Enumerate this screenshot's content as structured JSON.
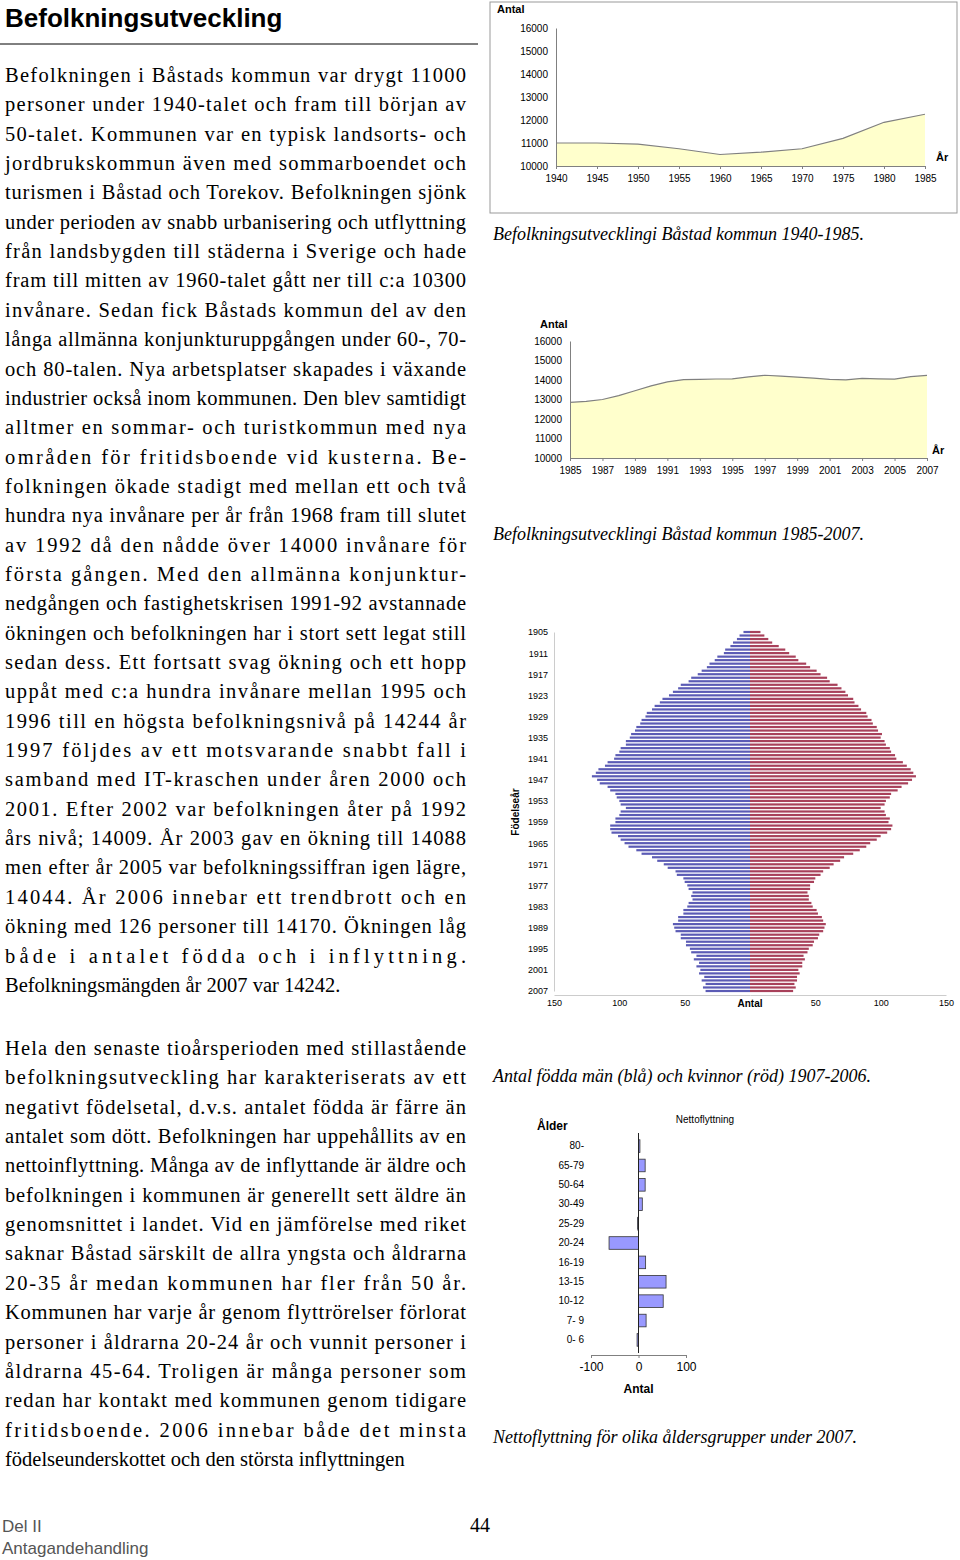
{
  "document": {
    "heading": "Befolkningsutveckling",
    "paragraphs": [
      [
        "Befolkningen i Båstads kommun var drygt 11000",
        "personer under 1940-talet och fram till början av",
        "50-talet. Kommunen var en typisk landsorts- och",
        "jordbrukskommun även med sommarboendet och",
        "turismen i Båstad och Torekov. Befolkningen sjönk",
        "under perioden av snabb urbanisering och utflyttning",
        "från landsbygden till städerna i Sverige och hade",
        "fram till mitten av 1960-talet gått ner till c:a 10300",
        "invånare. Sedan fick Båstads kommun del av den",
        "långa allmänna konjunkturuppgången under 60-, 70-",
        "och 80-talen. Nya arbetsplatser skapades i växande",
        "industrier också inom kommunen. Den blev samtidigt",
        "alltmer en sommar- och turistkommun med nya",
        "områden för fritidsboende vid kusterna. Be-",
        "folkningen ökade stadigt med mellan ett och två",
        "hundra nya invånare per år från 1968 fram till slutet",
        "av 1992 då den nådde över 14000 invånare för",
        "första gången. Med den allmänna konjunktur-",
        "nedgången och fastighetskrisen 1991-92 avstannade",
        "ökningen och befolkningen har i stort sett legat still",
        "sedan dess. Ett fortsatt svag ökning och ett hopp",
        "uppåt med c:a hundra invånare mellan 1995 och",
        "1996 till en högsta befolkningsnivå på 14244 år",
        "1997 följdes av ett motsvarande snabbt fall i",
        "samband med IT-kraschen under åren 2000 och",
        "2001. Efter 2002 var befolkningen åter på 1992",
        "års nivå; 14009. År 2003 gav en ökning till 14088",
        "men efter år 2005 var befolkningssiffran igen lägre,",
        "14044. År 2006 innebar ett trendbrott och en",
        "ökning med 126 personer till 14170. Ökningen låg",
        "både i antalet födda och i inflyttning.",
        "Befolkningsmängden år 2007 var 14242."
      ],
      [
        "Hela den senaste tioårsperioden med stillastående",
        "befolkningsutveckling har karakteriserats av ett",
        "negativt födelsetal, d.v.s. antalet födda är färre än",
        "antalet som dött. Befolkningen har uppehållits av en",
        "nettoinflyttning. Många av de inflyttande är äldre och",
        "befolkningen i kommunen är generellt sett äldre än",
        "genomsnittet i landet. Vid en jämförelse med riket",
        "saknar Båstad särskilt de allra yngsta och åldrarna",
        "20-35 år medan kommunen har fler från 50 år.",
        "Kommunen har varje år genom flyttrörelser förlorat",
        "personer i åldrarna 20-24 år och vunnit personer i",
        "åldrarna 45-64. Troligen är många personer som",
        "redan har kontakt med kommunen genom tidigare",
        "fritidsboende. 2006 innebar både det minsta",
        "födelseunderskottet och den största inflyttningen"
      ]
    ],
    "captions": [
      "Befolkningsutvecklingi Båstad kommun 1940-1985.",
      "Befolkningsutvecklingi Båstad kommun 1985-2007.",
      "Antal födda män (blå) och kvinnor (röd) 1907-2006.",
      "Nettoflyttning för olika åldersgrupper under 2007."
    ],
    "footer": {
      "lines": [
        "Del II",
        "Antagandehandling"
      ],
      "page": "44"
    }
  },
  "chart_data": [
    {
      "type": "area",
      "y_label": "Antal",
      "x_label": "År",
      "x": [
        1940,
        1945,
        1950,
        1955,
        1960,
        1965,
        1970,
        1975,
        1980,
        1985
      ],
      "values": [
        11000,
        11000,
        10950,
        10750,
        10500,
        10600,
        10750,
        11200,
        11900,
        12250
      ],
      "xlim": [
        1940,
        1985
      ],
      "xticks": [
        1940,
        1945,
        1950,
        1955,
        1960,
        1965,
        1970,
        1975,
        1980,
        1985
      ],
      "ylim": [
        10000,
        16000
      ],
      "yticks": [
        10000,
        11000,
        12000,
        13000,
        14000,
        15000,
        16000
      ],
      "color": "#ffffcc"
    },
    {
      "type": "area",
      "y_label": "Antal",
      "x_label": "År",
      "x": [
        1985,
        1986,
        1987,
        1988,
        1989,
        1990,
        1991,
        1992,
        1993,
        1994,
        1995,
        1996,
        1997,
        1998,
        1999,
        2000,
        2001,
        2002,
        2003,
        2004,
        2005,
        2006,
        2007
      ],
      "values": [
        12850,
        12900,
        13000,
        13200,
        13450,
        13700,
        13900,
        14020,
        14030,
        14050,
        14060,
        14160,
        14244,
        14200,
        14150,
        14100,
        14030,
        14009,
        14088,
        14060,
        14044,
        14170,
        14242
      ],
      "xlim": [
        1985,
        2007
      ],
      "xticks": [
        1985,
        1987,
        1989,
        1991,
        1993,
        1995,
        1997,
        1999,
        2001,
        2003,
        2005,
        2007
      ],
      "ylim": [
        10000,
        16000
      ],
      "yticks": [
        10000,
        11000,
        12000,
        13000,
        14000,
        15000,
        16000
      ],
      "color": "#ffffcc"
    },
    {
      "type": "bar",
      "orientation": "horizontal",
      "x_label": "Antal",
      "y_label": "Födelseår",
      "y": [
        1905,
        1906,
        1907,
        1908,
        1909,
        1910,
        1911,
        1912,
        1913,
        1914,
        1915,
        1916,
        1917,
        1918,
        1919,
        1920,
        1921,
        1922,
        1923,
        1924,
        1925,
        1926,
        1927,
        1928,
        1929,
        1930,
        1931,
        1932,
        1933,
        1934,
        1935,
        1936,
        1937,
        1938,
        1939,
        1940,
        1941,
        1942,
        1943,
        1944,
        1945,
        1946,
        1947,
        1948,
        1949,
        1950,
        1951,
        1952,
        1953,
        1954,
        1955,
        1956,
        1957,
        1958,
        1959,
        1960,
        1961,
        1962,
        1963,
        1964,
        1965,
        1966,
        1967,
        1968,
        1969,
        1970,
        1971,
        1972,
        1973,
        1974,
        1975,
        1976,
        1977,
        1978,
        1979,
        1980,
        1981,
        1982,
        1983,
        1984,
        1985,
        1986,
        1987,
        1988,
        1989,
        1990,
        1991,
        1992,
        1993,
        1994,
        1995,
        1996,
        1997,
        1998,
        1999,
        2000,
        2001,
        2002,
        2003,
        2004,
        2005,
        2006,
        2007
      ],
      "ylim": [
        1905,
        2007
      ],
      "yticks": [
        1905,
        1911,
        1917,
        1923,
        1929,
        1935,
        1941,
        1947,
        1953,
        1959,
        1965,
        1971,
        1977,
        1983,
        1989,
        1995,
        2001,
        2007
      ],
      "xlim": [
        0,
        150
      ],
      "xticks": [
        50,
        100,
        150
      ],
      "series": [
        {
          "color": "#5b5bb5",
          "values": [
            5,
            8,
            10,
            13,
            15,
            19,
            20,
            25,
            27,
            31,
            33,
            37,
            40,
            45,
            47,
            53,
            55,
            59,
            62,
            67,
            69,
            73,
            75,
            79,
            80,
            83,
            84,
            87,
            88,
            91,
            92,
            95,
            95,
            99,
            100,
            103,
            104,
            109,
            111,
            116,
            118,
            121,
            117,
            115,
            109,
            107,
            103,
            102,
            100,
            99,
            95,
            99,
            100,
            103,
            103,
            107,
            107,
            106,
            101,
            99,
            96,
            93,
            87,
            83,
            75,
            71,
            66,
            63,
            57,
            56,
            51,
            50,
            48,
            47,
            44,
            45,
            44,
            47,
            48,
            51,
            51,
            55,
            55,
            59,
            58,
            57,
            53,
            53,
            49,
            49,
            46,
            45,
            41,
            43,
            39,
            41,
            38,
            39,
            35,
            37,
            34,
            36,
            34
          ]
        },
        {
          "color": "#a8405a",
          "values": [
            8,
            11,
            14,
            17,
            22,
            27,
            30,
            35,
            37,
            43,
            46,
            51,
            54,
            59,
            61,
            67,
            70,
            73,
            75,
            79,
            80,
            83,
            85,
            89,
            90,
            93,
            94,
            97,
            98,
            101,
            100,
            103,
            104,
            107,
            108,
            111,
            112,
            117,
            120,
            123,
            125,
            127,
            124,
            121,
            116,
            113,
            108,
            107,
            104,
            103,
            100,
            103,
            104,
            107,
            106,
            109,
            108,
            105,
            100,
            97,
            92,
            89,
            84,
            79,
            72,
            69,
            64,
            61,
            56,
            54,
            50,
            49,
            46,
            46,
            44,
            45,
            45,
            47,
            48,
            51,
            52,
            55,
            56,
            58,
            57,
            56,
            53,
            52,
            49,
            48,
            45,
            44,
            41,
            42,
            40,
            40,
            37,
            38,
            36,
            36,
            34,
            35,
            33
          ]
        }
      ]
    },
    {
      "type": "bar",
      "orientation": "horizontal",
      "title": "Nettoflyttning",
      "y_label": "Ålder",
      "x_label": "Antal",
      "categories": [
        "80-",
        "65-79",
        "50-64",
        "30-49",
        "25-29",
        "20-24",
        "16-19",
        "13-15",
        "10-12",
        "7- 9",
        "0- 6"
      ],
      "values": [
        3,
        14,
        14,
        8,
        -2,
        -62,
        15,
        58,
        52,
        16,
        -3
      ],
      "xlim": [
        -100,
        100
      ],
      "xticks": [
        -100,
        0,
        100
      ],
      "color": "#9999ff"
    }
  ]
}
